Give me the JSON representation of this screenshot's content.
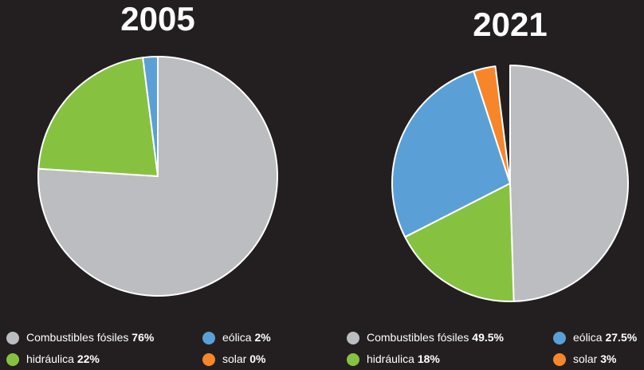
{
  "chart_data": [
    {
      "type": "pie",
      "title": "2005",
      "categories": [
        "Combustibles fósiles",
        "hidráulica",
        "eólica",
        "solar"
      ],
      "values": [
        76,
        22,
        2,
        0
      ],
      "value_labels": [
        "76%",
        "22%",
        "2%",
        "0%"
      ],
      "colors": [
        "#bcbdc0",
        "#86c240",
        "#5aa0d6",
        "#f7862a"
      ]
    },
    {
      "type": "pie",
      "title": "2021",
      "categories": [
        "Combustibles fósiles",
        "hidráulica",
        "eólica",
        "solar"
      ],
      "values": [
        49.5,
        18,
        27.5,
        3
      ],
      "value_labels": [
        "49.5%",
        "18%",
        "27.5%",
        "3%"
      ],
      "colors": [
        "#bcbdc0",
        "#86c240",
        "#5aa0d6",
        "#f7862a"
      ]
    }
  ]
}
